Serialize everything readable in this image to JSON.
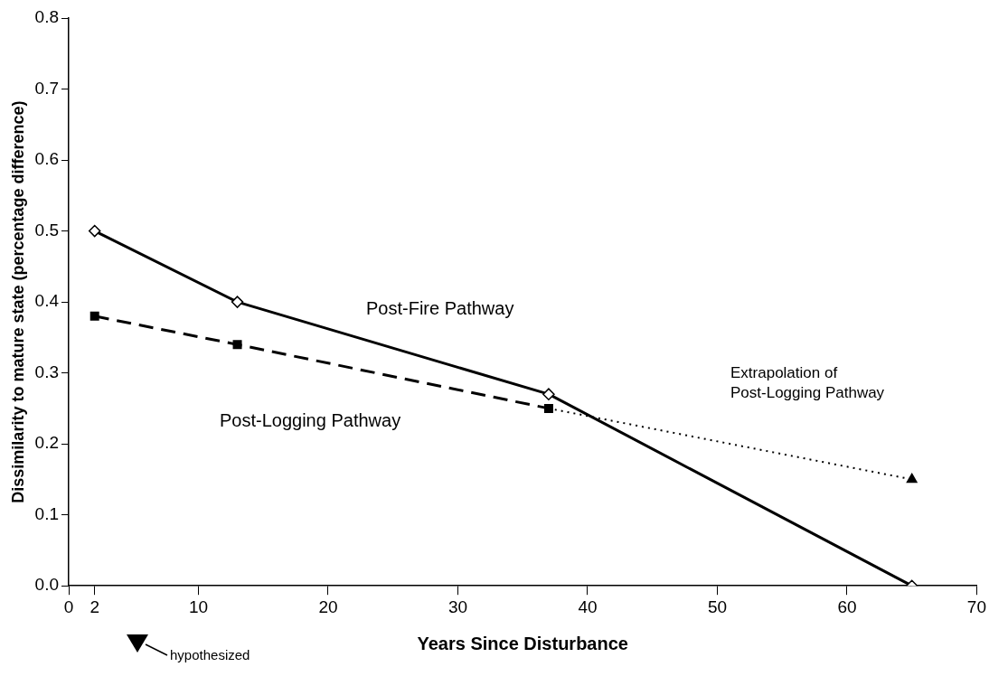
{
  "chart_data": {
    "type": "line",
    "xlabel": "Years Since Disturbance",
    "ylabel": "Dissimilarity to mature state (percentage difference)",
    "xlim": [
      0,
      70
    ],
    "xticks": [
      0,
      2,
      10,
      20,
      30,
      40,
      50,
      60,
      70
    ],
    "ylim": [
      0,
      0.8
    ],
    "yticks": [
      {
        "value": 0,
        "label": "0.0"
      },
      0.1,
      0.2,
      0.3,
      0.4,
      0.5,
      0.6,
      0.7,
      0.8
    ],
    "grid": false,
    "legend": false,
    "series": [
      {
        "name": "Post-Fire Pathway",
        "color": "#000000",
        "x": [
          2,
          13,
          37,
          65
        ],
        "values": [
          0.5,
          0.4,
          0.27,
          0
        ],
        "marker": "diamond",
        "line_style": "solid"
      },
      {
        "name": "Post-Logging Pathway",
        "color": "#000000",
        "x": [
          2,
          13,
          37
        ],
        "values": [
          0.38,
          0.34,
          0.25
        ],
        "marker": "square",
        "line_style": "dashed"
      },
      {
        "name": "Extrapolation of Post-Logging Pathway",
        "color": "#000000",
        "x": [
          37,
          65
        ],
        "values": [
          0.25,
          0.15
        ],
        "marker": "triangle",
        "line_style": "dotted"
      }
    ],
    "annotations": [
      "hypothesized"
    ]
  }
}
